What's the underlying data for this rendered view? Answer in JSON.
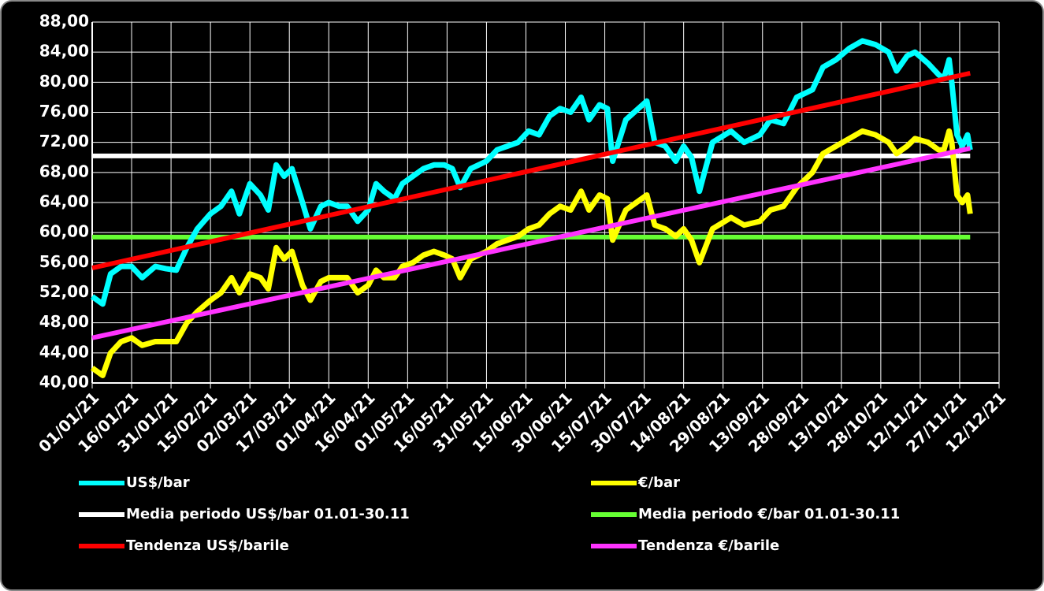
{
  "chart_data": {
    "type": "line",
    "xlim": [
      "01/01/21",
      "12/12/21"
    ],
    "xticks": [
      "01/01/21",
      "16/01/21",
      "31/01/21",
      "15/02/21",
      "02/03/21",
      "17/03/21",
      "01/04/21",
      "16/04/21",
      "01/05/21",
      "16/05/21",
      "31/05/21",
      "15/06/21",
      "30/06/21",
      "15/07/21",
      "30/07/21",
      "14/08/21",
      "29/08/21",
      "13/09/21",
      "28/09/21",
      "13/10/21",
      "28/10/21",
      "12/11/21",
      "27/11/21",
      "12/12/21"
    ],
    "ylim": [
      40,
      88
    ],
    "yticks": [
      {
        "value": 40,
        "label": "40,00"
      },
      {
        "value": 44,
        "label": "44,00"
      },
      {
        "value": 48,
        "label": "48,00"
      },
      {
        "value": 52,
        "label": "52,00"
      },
      {
        "value": 56,
        "label": "56,00"
      },
      {
        "value": 60,
        "label": "60,00"
      },
      {
        "value": 64,
        "label": "64,00"
      },
      {
        "value": 68,
        "label": "68,00"
      },
      {
        "value": 72,
        "label": "72,00"
      },
      {
        "value": 76,
        "label": "76,00"
      },
      {
        "value": 80,
        "label": "80,00"
      },
      {
        "value": 84,
        "label": "84,00"
      },
      {
        "value": 88,
        "label": "88,00"
      }
    ],
    "grid": true,
    "series": [
      {
        "name": "US$/bar",
        "color": "#00ffff",
        "x": [
          "01/01/21",
          "05/01/21",
          "08/01/21",
          "12/01/21",
          "16/01/21",
          "20/01/21",
          "25/01/21",
          "29/01/21",
          "02/02/21",
          "06/02/21",
          "10/02/21",
          "15/02/21",
          "19/02/21",
          "23/02/21",
          "26/02/21",
          "02/03/21",
          "06/03/21",
          "09/03/21",
          "12/03/21",
          "15/03/21",
          "18/03/21",
          "22/03/21",
          "25/03/21",
          "29/03/21",
          "01/04/21",
          "05/04/21",
          "08/04/21",
          "12/04/21",
          "16/04/21",
          "19/04/21",
          "22/04/21",
          "26/04/21",
          "29/04/21",
          "03/05/21",
          "07/05/21",
          "11/05/21",
          "15/05/21",
          "18/05/21",
          "21/05/21",
          "25/05/21",
          "28/05/21",
          "31/05/21",
          "04/06/21",
          "08/06/21",
          "12/06/21",
          "16/06/21",
          "20/06/21",
          "24/06/21",
          "28/06/21",
          "02/07/21",
          "06/07/21",
          "09/07/21",
          "13/07/21",
          "16/07/21",
          "18/07/21",
          "23/07/21",
          "31/07/21",
          "03/08/21",
          "07/08/21",
          "11/08/21",
          "14/08/21",
          "17/08/21",
          "20/08/21",
          "25/08/21",
          "01/09/21",
          "06/09/21",
          "12/09/21",
          "16/09/21",
          "21/09/21",
          "26/09/21",
          "02/10/21",
          "06/10/21",
          "11/10/21",
          "16/10/21",
          "21/10/21",
          "26/10/21",
          "31/10/21",
          "03/11/21",
          "07/11/21",
          "10/11/21",
          "15/11/21",
          "19/11/21",
          "21/11/21",
          "23/11/21",
          "24/11/21",
          "26/11/21",
          "28/11/21",
          "30/11/21",
          "01/12/21"
        ],
        "values": [
          51.5,
          50.5,
          54.5,
          55.5,
          55.5,
          54,
          55.5,
          55.2,
          55,
          58,
          60.5,
          62.5,
          63.5,
          65.5,
          62.5,
          66.5,
          65,
          63,
          69,
          67.5,
          68.5,
          64,
          60.5,
          63.5,
          64,
          63.5,
          63.5,
          61.5,
          63,
          66.5,
          65.5,
          64.5,
          66.5,
          67.5,
          68.5,
          69,
          69,
          68.5,
          66,
          68.5,
          69,
          69.5,
          71,
          71.5,
          72,
          73.5,
          73,
          75.5,
          76.5,
          76,
          78,
          75,
          77,
          76.5,
          69.5,
          75,
          77.5,
          72,
          71.5,
          69.5,
          71.5,
          70,
          65.5,
          72,
          73.5,
          72,
          73,
          75,
          74.5,
          78,
          79,
          82,
          83,
          84.5,
          85.5,
          85,
          84,
          81.5,
          83.5,
          84,
          82.5,
          81,
          80.5,
          83,
          80,
          73,
          71.5,
          73,
          71
        ]
      },
      {
        "name": "€/bar",
        "color": "#ffff00",
        "x": [
          "01/01/21",
          "05/01/21",
          "08/01/21",
          "12/01/21",
          "16/01/21",
          "20/01/21",
          "25/01/21",
          "29/01/21",
          "02/02/21",
          "06/02/21",
          "10/02/21",
          "15/02/21",
          "19/02/21",
          "23/02/21",
          "26/02/21",
          "02/03/21",
          "06/03/21",
          "09/03/21",
          "12/03/21",
          "15/03/21",
          "18/03/21",
          "22/03/21",
          "25/03/21",
          "29/03/21",
          "01/04/21",
          "05/04/21",
          "08/04/21",
          "12/04/21",
          "16/04/21",
          "19/04/21",
          "22/04/21",
          "26/04/21",
          "29/04/21",
          "03/05/21",
          "07/05/21",
          "11/05/21",
          "15/05/21",
          "18/05/21",
          "21/05/21",
          "25/05/21",
          "28/05/21",
          "31/05/21",
          "04/06/21",
          "08/06/21",
          "12/06/21",
          "16/06/21",
          "20/06/21",
          "24/06/21",
          "28/06/21",
          "02/07/21",
          "06/07/21",
          "09/07/21",
          "13/07/21",
          "16/07/21",
          "18/07/21",
          "23/07/21",
          "31/07/21",
          "03/08/21",
          "07/08/21",
          "11/08/21",
          "14/08/21",
          "17/08/21",
          "20/08/21",
          "25/08/21",
          "01/09/21",
          "06/09/21",
          "12/09/21",
          "16/09/21",
          "21/09/21",
          "26/09/21",
          "02/10/21",
          "06/10/21",
          "11/10/21",
          "16/10/21",
          "21/10/21",
          "26/10/21",
          "31/10/21",
          "03/11/21",
          "07/11/21",
          "10/11/21",
          "15/11/21",
          "19/11/21",
          "21/11/21",
          "23/11/21",
          "24/11/21",
          "26/11/21",
          "28/11/21",
          "30/11/21",
          "01/12/21"
        ],
        "values": [
          42,
          41,
          44,
          45.5,
          46,
          45,
          45.5,
          45.5,
          45.5,
          48,
          49.5,
          51,
          52,
          54,
          52,
          54.5,
          54,
          52.5,
          58,
          56.5,
          57.5,
          53,
          51,
          53.5,
          54,
          54,
          54,
          52,
          53,
          55,
          54,
          54,
          55.5,
          56,
          57,
          57.5,
          57,
          56.5,
          54,
          56.5,
          57,
          57.5,
          58.5,
          59,
          59.5,
          60.5,
          61,
          62.5,
          63.5,
          63,
          65.5,
          63,
          65,
          64.5,
          59,
          63,
          65,
          61,
          60.5,
          59.5,
          60.5,
          59,
          56,
          60.5,
          62,
          61,
          61.5,
          63,
          63.5,
          66,
          68,
          70.5,
          71.5,
          72.5,
          73.5,
          73,
          72,
          70.5,
          71.5,
          72.5,
          72,
          71,
          71,
          73.5,
          72,
          65,
          64,
          65,
          62.5
        ]
      },
      {
        "name": "Media periodo US$/bar 01.01-30.11",
        "color": "#ffffff",
        "x": [
          "01/01/21",
          "01/12/21"
        ],
        "values": [
          70.2,
          70.2
        ]
      },
      {
        "name": "Media periodo €/bar 01.01-30.11",
        "color": "#66ff33",
        "x": [
          "01/01/21",
          "01/12/21"
        ],
        "values": [
          59.4,
          59.4
        ]
      },
      {
        "name": "Tendenza US$/barile",
        "color": "#ff0000",
        "x": [
          "01/01/21",
          "01/12/21"
        ],
        "values": [
          55.3,
          81.2
        ]
      },
      {
        "name": "Tendenza €/barile",
        "color": "#ff33ff",
        "x": [
          "01/01/21",
          "01/12/21"
        ],
        "values": [
          46,
          71.2
        ]
      }
    ]
  }
}
